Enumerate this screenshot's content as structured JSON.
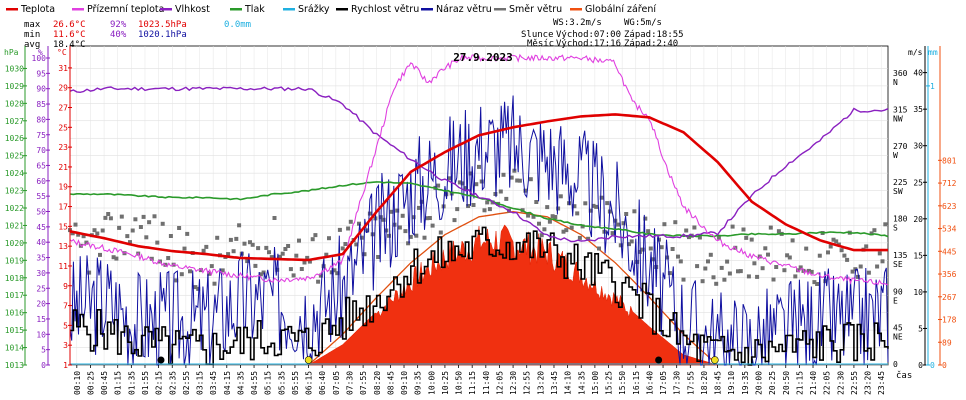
{
  "chart_data": {
    "type": "line",
    "title": "27.9.2023",
    "x_unit_label": "čas",
    "time_ticks": [
      "00:10",
      "00:25",
      "00:45",
      "01:15",
      "01:35",
      "01:55",
      "02:15",
      "02:35",
      "02:55",
      "03:15",
      "03:45",
      "04:15",
      "04:35",
      "04:55",
      "05:15",
      "05:35",
      "05:55",
      "06:15",
      "06:40",
      "07:05",
      "07:30",
      "07:55",
      "08:20",
      "08:45",
      "09:10",
      "09:35",
      "10:00",
      "10:25",
      "10:50",
      "11:15",
      "11:40",
      "12:05",
      "12:30",
      "12:55",
      "13:20",
      "13:45",
      "14:10",
      "14:35",
      "15:00",
      "15:25",
      "15:50",
      "16:15",
      "16:40",
      "17:05",
      "17:30",
      "17:55",
      "18:20",
      "18:45",
      "19:10",
      "19:35",
      "20:00",
      "20:25",
      "20:50",
      "21:15",
      "21:40",
      "22:05",
      "22:30",
      "22:55",
      "23:20",
      "23:45"
    ],
    "legend": [
      {
        "name": "Teplota",
        "color": "#e00000"
      },
      {
        "name": "Přízemní teplota",
        "color": "#e040e0"
      },
      {
        "name": "Vlhkost",
        "color": "#8a20c0"
      },
      {
        "name": "Tlak",
        "color": "#2a9a2a"
      },
      {
        "name": "Srážky",
        "color": "#20b0e0"
      },
      {
        "name": "Rychlost větru",
        "color": "#000000"
      },
      {
        "name": "Náraz větru",
        "color": "#1010a0"
      },
      {
        "name": "Směr větru",
        "color": "#707070"
      },
      {
        "name": "Globální záření",
        "color": "#f05010"
      }
    ],
    "stats": {
      "max": {
        "label": "max",
        "temp": "26.6°C",
        "hum": "92%",
        "press": "1023.5hPa",
        "rain": "0.0mm"
      },
      "min": {
        "label": "min",
        "temp": "11.6°C",
        "hum": "40%",
        "press": "1020.1hPa"
      },
      "avg": {
        "label": "avg",
        "temp": "18.4°C"
      }
    },
    "info": {
      "ws": "WS:3.2m/s",
      "wg": "WG:5m/s",
      "sun_label": "Slunce",
      "sunrise": "Východ:07:00",
      "sunset": "Západ:18:55",
      "moon_label": "Měsíc",
      "moonrise": "Východ:17:16",
      "moonset": "Západ:2:40"
    },
    "axes": {
      "pressure": {
        "unit": "hPa",
        "color": "#2a9a2a",
        "ticks": [
          "1013",
          "1014",
          "1015",
          "1016",
          "1017",
          "1018",
          "1019",
          "1020",
          "1021",
          "1022",
          "1023",
          "1024",
          "1025",
          "1026",
          "1027",
          "1028",
          "1029",
          "1030"
        ],
        "ylim": [
          1013,
          1030.6
        ]
      },
      "humidity": {
        "unit": "%",
        "color": "#8a20c0",
        "ticks": [
          "0",
          "5",
          "10",
          "15",
          "20",
          "25",
          "30",
          "35",
          "40",
          "45",
          "50",
          "55",
          "60",
          "65",
          "70",
          "75",
          "80",
          "85",
          "90",
          "95",
          "100"
        ],
        "ylim": [
          0,
          100
        ]
      },
      "temperature": {
        "unit": "°C",
        "color": "#e00000",
        "ticks": [
          "1",
          "3",
          "5",
          "7",
          "9",
          "11",
          "13",
          "15",
          "17",
          "19",
          "21",
          "23",
          "25",
          "27",
          "29",
          "31"
        ],
        "ylim": [
          1,
          32
        ]
      },
      "wind_speed": {
        "unit": "m/s",
        "color": "#000",
        "ticks": [
          "0",
          "5",
          "10",
          "15",
          "20",
          "25",
          "30",
          "35",
          "40"
        ]
      },
      "wind_dir": {
        "color": "#000",
        "ticks": [
          {
            "v": "360",
            "d": "N"
          },
          {
            "v": "315",
            "d": "NW"
          },
          {
            "v": "270",
            "d": "W"
          },
          {
            "v": "225",
            "d": "SW"
          },
          {
            "v": "180",
            "d": "S"
          },
          {
            "v": "135",
            "d": "SE"
          },
          {
            "v": "90",
            "d": "E"
          },
          {
            "v": "45",
            "d": "NE"
          },
          {
            "v": "0",
            "d": ""
          }
        ]
      },
      "rain": {
        "unit": "mm",
        "color": "#20b0e0",
        "ticks": [
          "0",
          "1"
        ]
      },
      "radiation": {
        "color": "#f05010",
        "ticks": [
          "0",
          "89",
          "178",
          "267",
          "356",
          "445",
          "534",
          "623",
          "712",
          "801"
        ]
      }
    },
    "series": {
      "temperature": {
        "t": [
          0,
          1,
          2,
          3,
          4,
          5,
          6,
          7,
          8,
          9,
          10,
          11,
          12,
          13,
          14,
          15,
          16,
          17,
          18,
          19,
          20,
          21,
          22,
          23,
          24
        ],
        "v": [
          14.5,
          13.8,
          13.0,
          12.5,
          12.2,
          11.8,
          11.7,
          11.6,
          12.2,
          16.5,
          20.5,
          22.5,
          24.2,
          25.0,
          25.6,
          26.1,
          26.3,
          26.0,
          24.5,
          21.5,
          17.5,
          15.2,
          13.6,
          12.6,
          12.6
        ]
      },
      "humidity": {
        "t": [
          0,
          1,
          2,
          3,
          4,
          5,
          6,
          7,
          8,
          9,
          10,
          11,
          12,
          13,
          14,
          15,
          16,
          17,
          18,
          19,
          20,
          21,
          22,
          23,
          24
        ],
        "v": [
          89,
          90,
          90,
          90,
          90,
          90,
          90,
          90,
          85,
          75,
          67,
          60,
          55,
          50,
          42,
          40,
          42,
          42,
          42,
          43,
          55,
          65,
          73,
          83,
          83
        ]
      },
      "pressure": {
        "t": [
          0,
          1,
          2,
          3,
          4,
          5,
          6,
          7,
          8,
          9,
          10,
          11,
          12,
          13,
          14,
          15,
          16,
          17,
          18,
          19,
          20,
          21,
          22,
          23,
          24
        ],
        "v": [
          1022.8,
          1022.8,
          1022.7,
          1022.6,
          1022.6,
          1022.5,
          1022.8,
          1023.0,
          1023.3,
          1023.5,
          1023.4,
          1023.0,
          1022.6,
          1022.0,
          1021.4,
          1021.0,
          1020.8,
          1020.5,
          1020.4,
          1020.4,
          1020.5,
          1020.5,
          1020.6,
          1020.6,
          1020.4
        ]
      },
      "ground_temp": {
        "t": [
          0,
          1,
          2,
          3,
          4,
          5,
          6,
          7,
          8,
          9,
          9.5,
          10,
          10.5,
          11,
          11.5,
          12,
          13,
          14,
          15,
          16,
          16.5,
          17,
          17.5,
          18,
          19,
          20,
          21,
          22,
          23,
          24
        ],
        "v": [
          13.5,
          12.8,
          12.0,
          11.0,
          10.5,
          10.0,
          9.6,
          9.8,
          11.5,
          23.0,
          29.0,
          31.5,
          29.5,
          31.0,
          32.0,
          32.0,
          32.0,
          32.0,
          32.0,
          31.5,
          27.5,
          26.0,
          21.0,
          17.0,
          13.5,
          12.0,
          11.0,
          10.0,
          9.5,
          9.2
        ]
      },
      "wind_speed_mps": {
        "t": [
          0,
          1,
          2,
          3,
          4,
          5,
          6,
          7,
          8,
          9,
          10,
          11,
          12,
          13,
          14,
          15,
          16,
          17,
          18,
          19,
          20,
          21,
          22,
          23,
          24
        ],
        "v": [
          3.5,
          3.0,
          2.0,
          1.5,
          1.5,
          2.0,
          2.5,
          2.0,
          4.0,
          6.0,
          9.0,
          10.0,
          11.0,
          11.0,
          10.5,
          9.0,
          7.5,
          5.0,
          2.0,
          1.0,
          1.0,
          1.5,
          2.0,
          2.0,
          2.5
        ]
      },
      "wind_gust_mps": {
        "t": [
          0,
          1,
          2,
          3,
          4,
          5,
          6,
          7,
          8,
          9,
          10,
          11,
          12,
          13,
          14,
          15,
          16,
          17,
          18,
          19,
          20,
          21,
          22,
          23,
          24
        ],
        "v": [
          5,
          6,
          4,
          4,
          4,
          6,
          6,
          5,
          7,
          12,
          16,
          18,
          20,
          20,
          19,
          17,
          14,
          9,
          4,
          2,
          2,
          3,
          4,
          4,
          5
        ]
      },
      "radiation": {
        "t": [
          7,
          8,
          9,
          10,
          11,
          12,
          12.5,
          13,
          14,
          15,
          16,
          17,
          18,
          19
        ],
        "v": [
          0,
          80,
          210,
          340,
          440,
          500,
          510,
          495,
          460,
          370,
          270,
          150,
          40,
          0
        ]
      },
      "theoretical_radiation": {
        "t": [
          7,
          8,
          9,
          10,
          11,
          12,
          13,
          14,
          15,
          16,
          17,
          18,
          19
        ],
        "v": [
          0,
          120,
          265,
          400,
          510,
          580,
          600,
          580,
          510,
          400,
          265,
          120,
          0
        ]
      },
      "wind_dir_deg": {
        "t": [
          0,
          1,
          2,
          3,
          4,
          5,
          6,
          7,
          8,
          9,
          10,
          11,
          12,
          13,
          14,
          15,
          16,
          17,
          18,
          19,
          20,
          21,
          22,
          23,
          24
        ],
        "v": [
          140,
          150,
          170,
          140,
          120,
          140,
          150,
          130,
          145,
          160,
          180,
          200,
          220,
          210,
          190,
          180,
          170,
          150,
          140,
          135,
          140,
          135,
          130,
          140,
          145
        ]
      }
    },
    "markers": {
      "sunrise_h": 7.0,
      "sunset_h": 18.92,
      "moonrise_h": 17.27,
      "moonset_h": 2.67
    }
  }
}
